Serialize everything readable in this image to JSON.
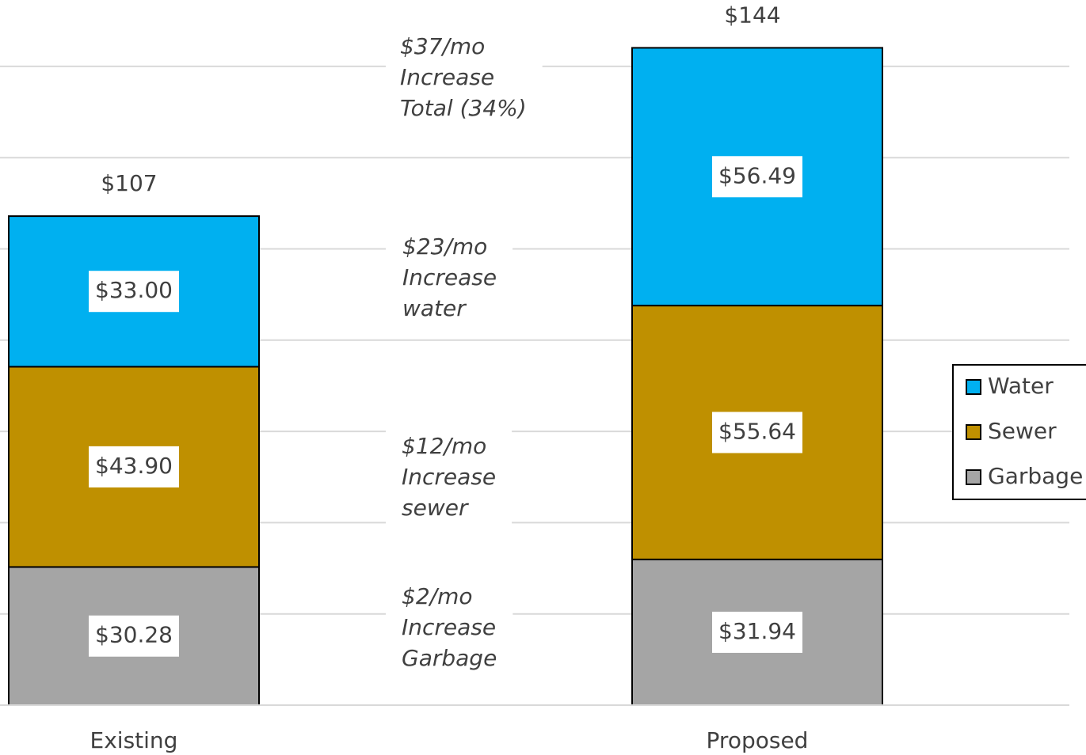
{
  "chart_data": {
    "type": "stacked_bar",
    "categories": [
      "Existing",
      "Proposed"
    ],
    "series": [
      {
        "name": "Water",
        "color": "#00b0f0",
        "values": [
          33.0,
          56.49
        ],
        "value_labels": [
          "$33.00",
          "$56.49"
        ]
      },
      {
        "name": "Sewer",
        "color": "#bf9000",
        "values": [
          43.9,
          55.64
        ],
        "value_labels": [
          "$43.90",
          "$55.64"
        ]
      },
      {
        "name": "Garbage",
        "color": "#a5a5a5",
        "values": [
          30.28,
          31.94
        ],
        "value_labels": [
          "$30.28",
          "$31.94"
        ]
      }
    ],
    "total_labels": [
      "$107",
      "$144"
    ],
    "annotations": [
      [
        "$37/mo",
        "Increase",
        "Total (34%)"
      ],
      [
        "$23/mo",
        "Increase",
        "water"
      ],
      [
        "$12/mo",
        "Increase",
        "sewer"
      ],
      [
        "$2/mo",
        "Increase",
        "Garbage"
      ]
    ],
    "ylim": [
      0,
      150
    ],
    "yticks": [
      0,
      20,
      40,
      60,
      80,
      100,
      120,
      140
    ],
    "grid": true,
    "legend": "right"
  }
}
